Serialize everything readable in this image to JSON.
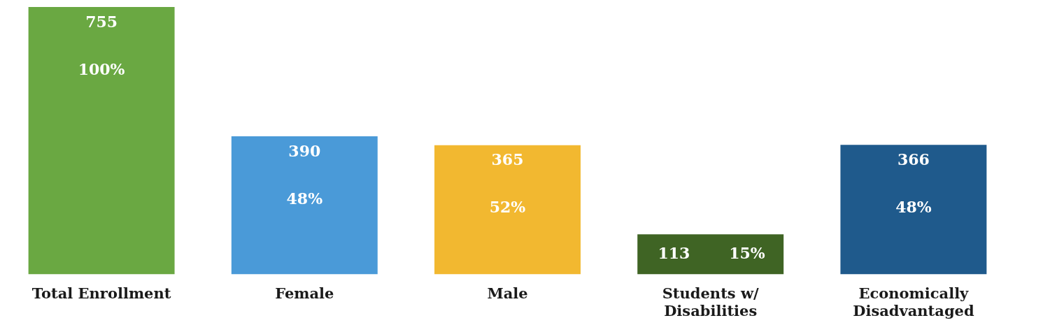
{
  "chart_data": {
    "type": "bar",
    "categories": [
      "Total Enrollment",
      "Female",
      "Male",
      "Students w/ Disabilities",
      "Economically Disadvantaged"
    ],
    "values": [
      755,
      390,
      365,
      113,
      366
    ],
    "colors": [
      "#6aa842",
      "#4a9ad8",
      "#f2b830",
      "#3f6424",
      "#1f5a8c"
    ],
    "data_labels": true,
    "annotations": [
      "100%",
      "48%",
      "52%",
      "15%",
      "48%"
    ],
    "grid": false,
    "legend": false,
    "tick_labels": "x"
  }
}
